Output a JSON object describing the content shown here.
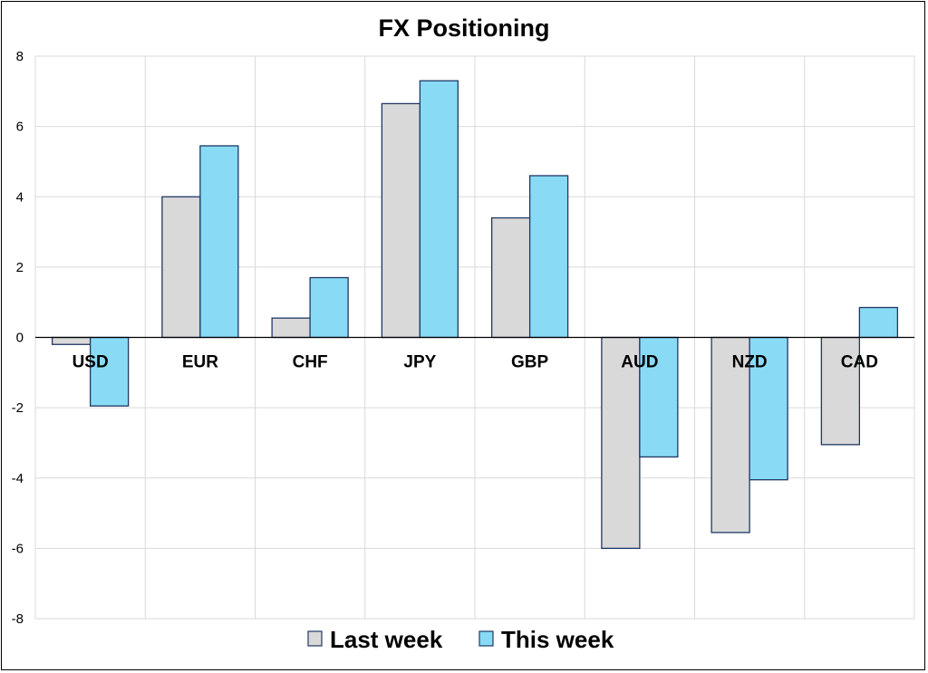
{
  "chart_data": {
    "type": "bar",
    "title": "FX Positioning",
    "categories": [
      "USD",
      "EUR",
      "CHF",
      "JPY",
      "GBP",
      "AUD",
      "NZD",
      "CAD"
    ],
    "series": [
      {
        "name": "Last week",
        "values": [
          -0.2,
          4.0,
          0.55,
          6.65,
          3.4,
          -6.0,
          -5.55,
          -3.05
        ],
        "color": "#d9d9d9"
      },
      {
        "name": "This week",
        "values": [
          -1.95,
          5.45,
          1.7,
          7.3,
          4.6,
          -3.4,
          -4.05,
          0.85
        ],
        "color": "#89dbf5"
      }
    ],
    "bar_stroke": "#1f3864",
    "ylim": [
      -8,
      8
    ],
    "yticks": [
      "-8",
      "-6",
      "-4",
      "-2",
      "0",
      "2",
      "4",
      "6",
      "8"
    ],
    "xlabel": "",
    "ylabel": "",
    "grid": true,
    "legend_position": "bottom"
  }
}
